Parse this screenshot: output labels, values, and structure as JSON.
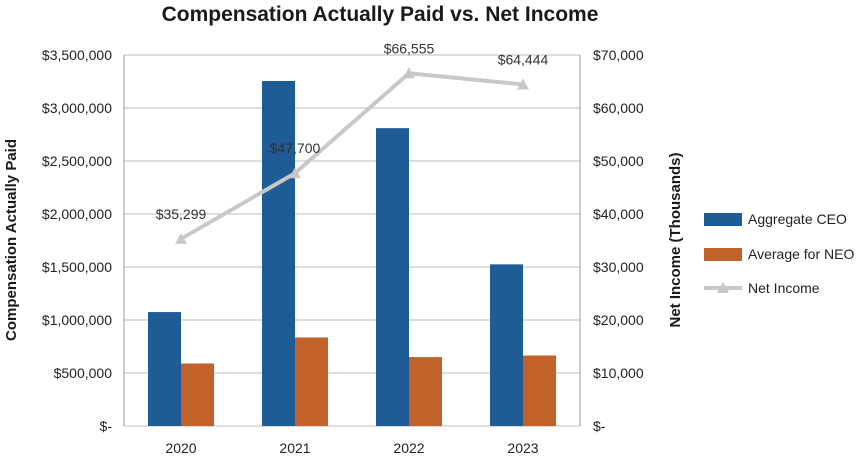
{
  "chart_data": {
    "type": "bar",
    "title": "Compensation Actually Paid vs. Net Income",
    "categories": [
      "2020",
      "2021",
      "2022",
      "2023"
    ],
    "ylabel": "Compensation Actually Paid",
    "y2label": "Net Income (Thousands)",
    "ylim": [
      0,
      3500000
    ],
    "y2lim": [
      0,
      70000
    ],
    "yticks": [
      0,
      500000,
      1000000,
      1500000,
      2000000,
      2500000,
      3000000,
      3500000
    ],
    "yticklabels": [
      "$-",
      "$500,000",
      "$1,000,000",
      "$1,500,000",
      "$2,000,000",
      "$2,500,000",
      "$3,000,000",
      "$3,500,000"
    ],
    "y2ticks": [
      0,
      10000,
      20000,
      30000,
      40000,
      50000,
      60000,
      70000
    ],
    "y2ticklabels": [
      "$-",
      "$10,000",
      "$20,000",
      "$30,000",
      "$40,000",
      "$50,000",
      "$60,000",
      "$70,000"
    ],
    "grid": true,
    "legend": "right",
    "series": [
      {
        "name": "Aggregate CEO",
        "type": "bar",
        "axis": "left",
        "color": "#1f5b94",
        "values": [
          1075000,
          3255000,
          2810000,
          1525000
        ]
      },
      {
        "name": "Average for NEO",
        "type": "bar",
        "axis": "left",
        "color": "#c0622a",
        "values": [
          590000,
          835000,
          650000,
          665000
        ]
      },
      {
        "name": "Net Income",
        "type": "line",
        "axis": "right",
        "color": "#c8c8c8",
        "values": [
          35299,
          47700,
          66555,
          64444
        ],
        "labels": [
          "$35,299",
          "$47,700",
          "$66,555",
          "$64,444"
        ]
      }
    ]
  }
}
